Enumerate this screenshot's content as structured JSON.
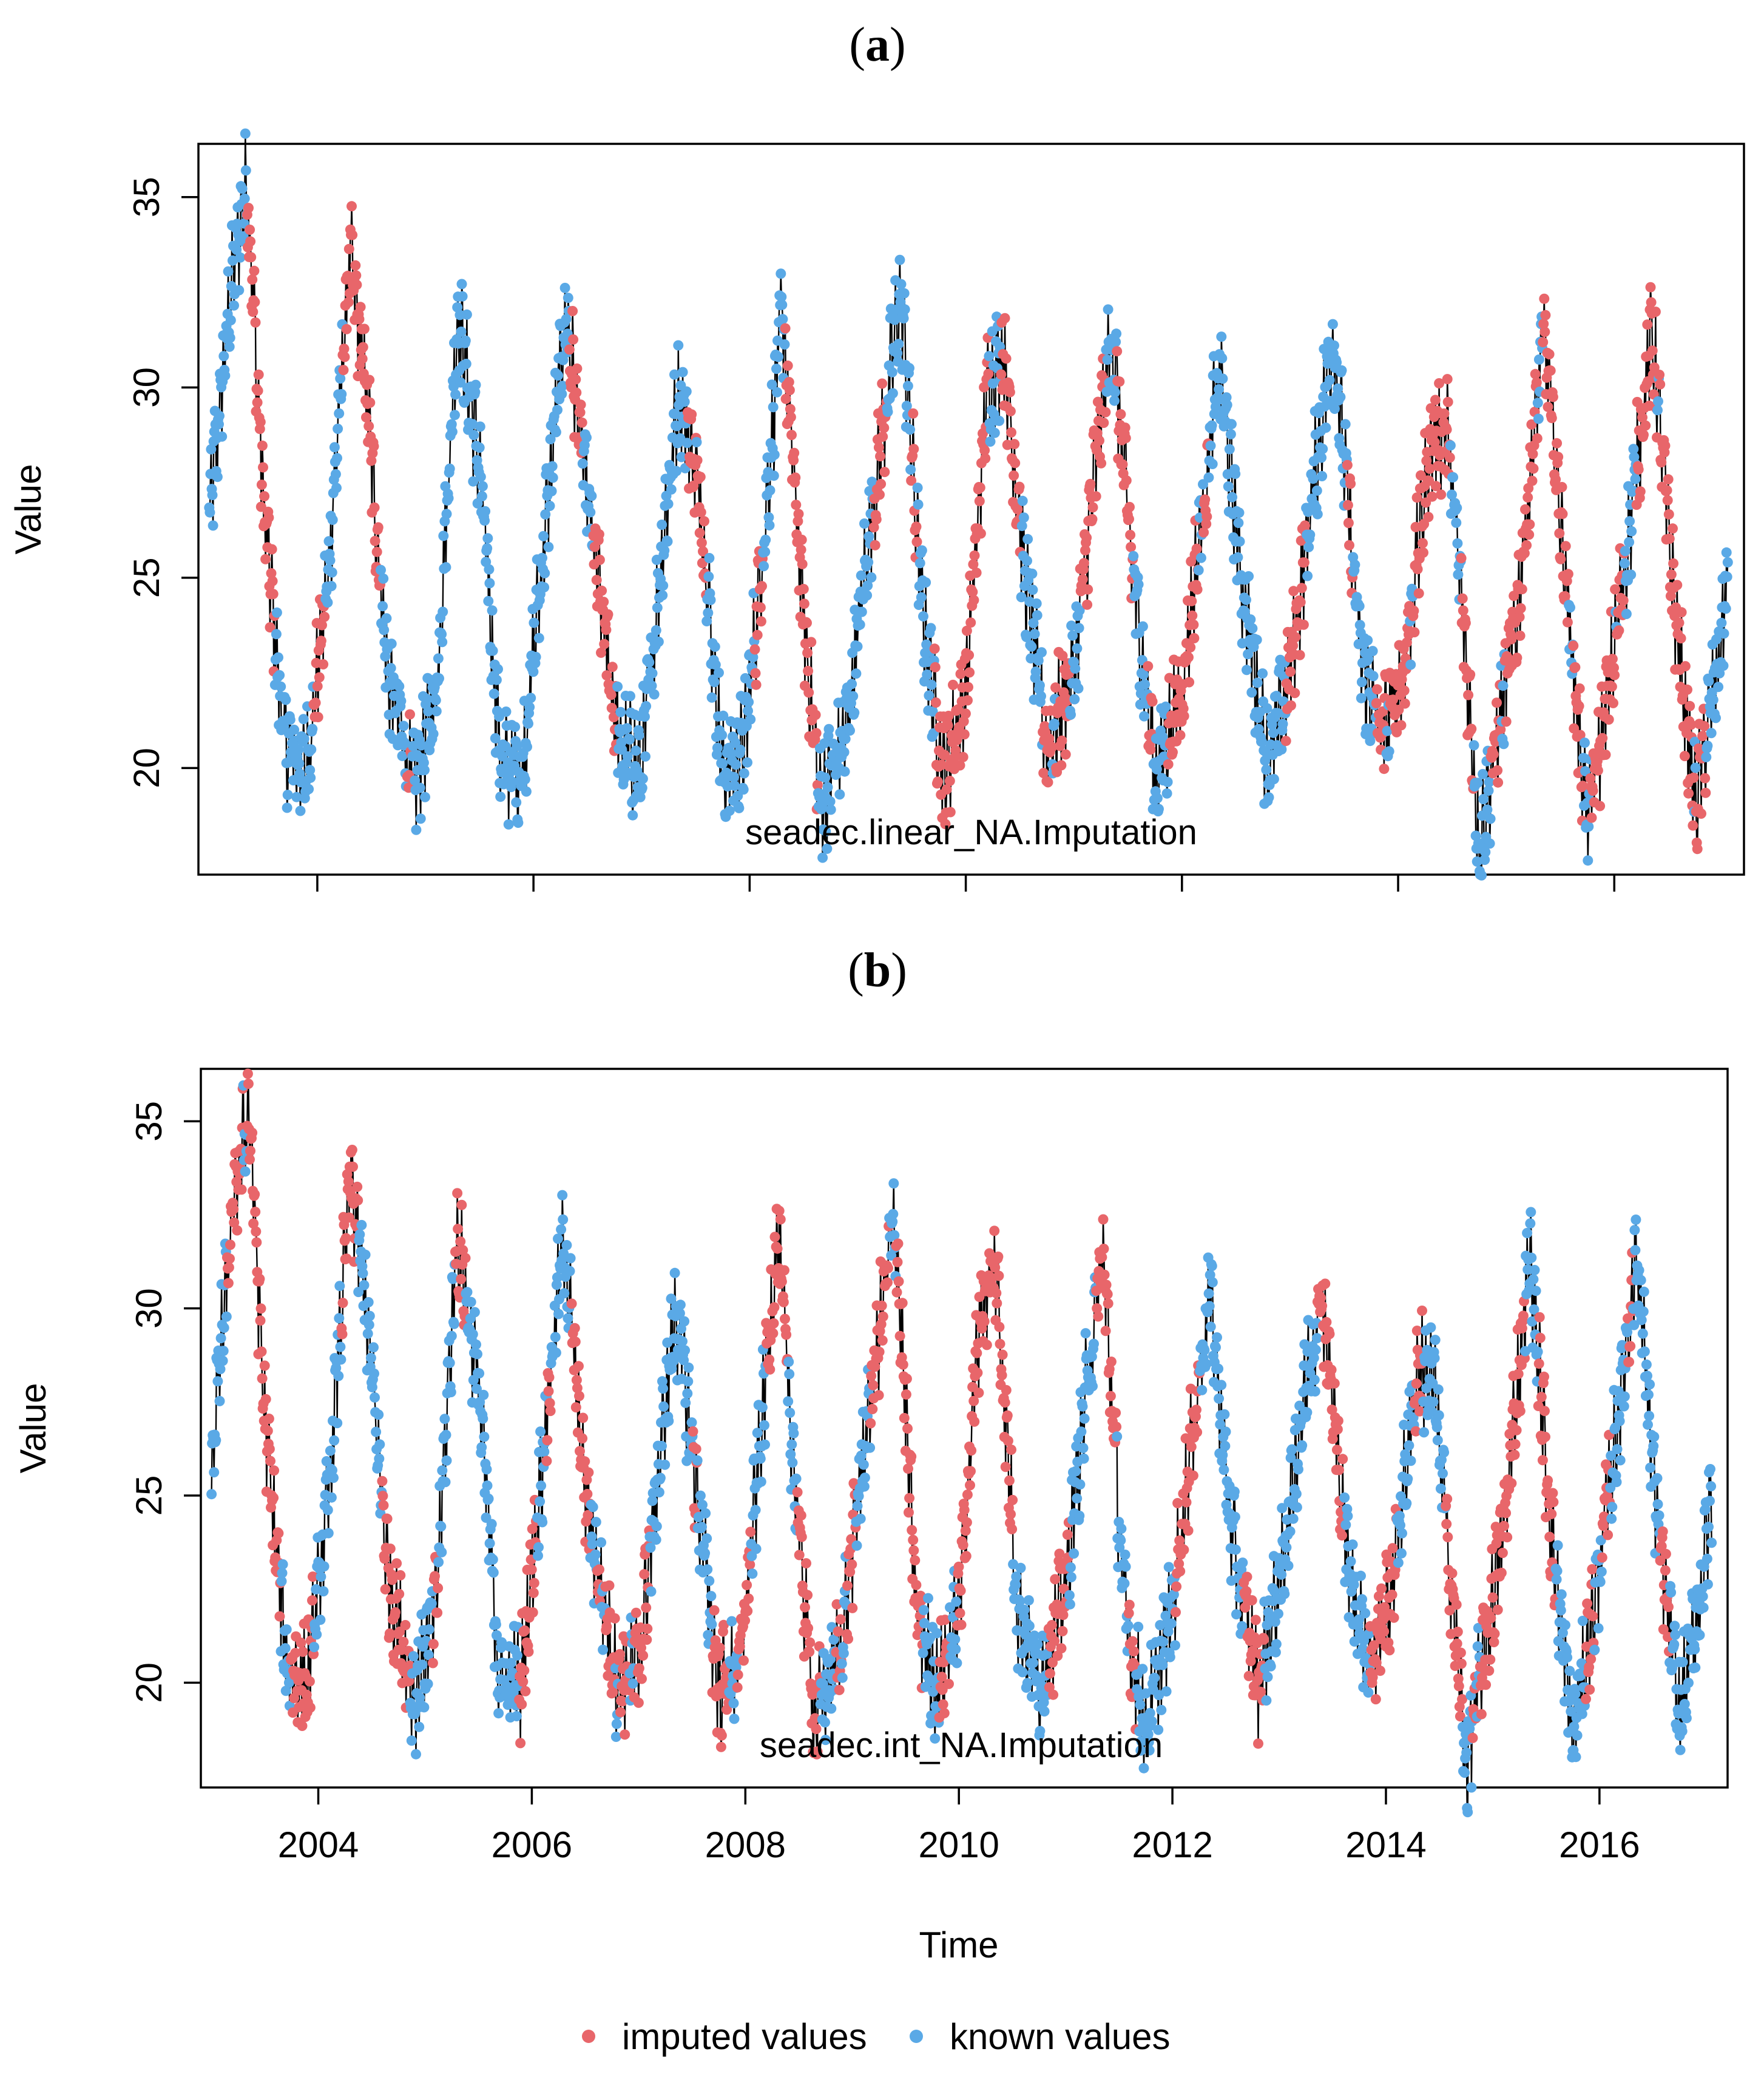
{
  "figure": {
    "legend": [
      {
        "label": "imputed values",
        "color": "#e8666a"
      },
      {
        "label": "known values",
        "color": "#5aa9e6"
      }
    ],
    "line_color": "#000000",
    "x_axis_title": "Time",
    "y_axis_title": "Value"
  },
  "chart_data": [
    {
      "type": "line",
      "panel_label": "a",
      "method_label": "seadec.linear_NA.Imputation",
      "xlabel": "",
      "ylabel": "Value",
      "xlim": [
        2002.9,
        2017.2
      ],
      "ylim": [
        17.2,
        36.4
      ],
      "x_ticks": [
        2004,
        2006,
        2008,
        2010,
        2012,
        2014,
        2016
      ],
      "x_tick_labels": [],
      "y_ticks": [
        20,
        25,
        30,
        35
      ],
      "y_tick_labels": [
        "20",
        "25",
        "30",
        "35"
      ],
      "imputation_style": "linear",
      "anchors": [
        [
          2003.0,
          26.5
        ],
        [
          2003.2,
          32.5
        ],
        [
          2003.35,
          35.5
        ],
        [
          2003.5,
          27.0
        ],
        [
          2003.7,
          20.5
        ],
        [
          2003.9,
          20.0
        ],
        [
          2004.1,
          25.0
        ],
        [
          2004.3,
          33.5
        ],
        [
          2004.45,
          30.0
        ],
        [
          2004.65,
          22.5
        ],
        [
          2004.9,
          19.5
        ],
        [
          2005.1,
          22.0
        ],
        [
          2005.3,
          32.0
        ],
        [
          2005.5,
          28.0
        ],
        [
          2005.7,
          20.0
        ],
        [
          2005.9,
          20.0
        ],
        [
          2006.1,
          26.0
        ],
        [
          2006.3,
          32.0
        ],
        [
          2006.5,
          27.0
        ],
        [
          2006.8,
          20.5
        ],
        [
          2007.0,
          20.0
        ],
        [
          2007.2,
          26.0
        ],
        [
          2007.35,
          30.0
        ],
        [
          2007.55,
          27.0
        ],
        [
          2007.75,
          19.8
        ],
        [
          2007.95,
          20.5
        ],
        [
          2008.1,
          25.0
        ],
        [
          2008.3,
          32.0
        ],
        [
          2008.5,
          24.0
        ],
        [
          2008.65,
          19.0
        ],
        [
          2008.9,
          21.0
        ],
        [
          2009.1,
          26.0
        ],
        [
          2009.4,
          32.5
        ],
        [
          2009.6,
          24.0
        ],
        [
          2009.8,
          19.8
        ],
        [
          2010.0,
          22.0
        ],
        [
          2010.2,
          30.0
        ],
        [
          2010.35,
          31.0
        ],
        [
          2010.55,
          25.0
        ],
        [
          2010.75,
          20.5
        ],
        [
          2011.0,
          22.5
        ],
        [
          2011.2,
          28.0
        ],
        [
          2011.35,
          31.5
        ],
        [
          2011.55,
          25.0
        ],
        [
          2011.75,
          19.8
        ],
        [
          2012.0,
          22.0
        ],
        [
          2012.2,
          27.0
        ],
        [
          2012.35,
          30.5
        ],
        [
          2012.55,
          25.0
        ],
        [
          2012.8,
          20.0
        ],
        [
          2013.0,
          22.5
        ],
        [
          2013.2,
          27.0
        ],
        [
          2013.4,
          31.5
        ],
        [
          2013.65,
          23.0
        ],
        [
          2013.85,
          20.8
        ],
        [
          2014.05,
          22.5
        ],
        [
          2014.3,
          28.5
        ],
        [
          2014.45,
          29.0
        ],
        [
          2014.6,
          24.0
        ],
        [
          2014.75,
          18.0
        ],
        [
          2014.9,
          20.5
        ],
        [
          2015.1,
          24.0
        ],
        [
          2015.35,
          31.5
        ],
        [
          2015.55,
          25.0
        ],
        [
          2015.75,
          18.5
        ],
        [
          2015.95,
          22.0
        ],
        [
          2016.15,
          26.5
        ],
        [
          2016.35,
          31.5
        ],
        [
          2016.55,
          24.5
        ],
        [
          2016.75,
          19.0
        ],
        [
          2016.95,
          22.5
        ],
        [
          2017.05,
          25.0
        ]
      ]
    },
    {
      "type": "line",
      "panel_label": "b",
      "method_label": "seadec.int_NA.Imputation",
      "xlabel": "Time",
      "ylabel": "Value",
      "xlim": [
        2002.9,
        2017.2
      ],
      "ylim": [
        17.2,
        36.4
      ],
      "x_ticks": [
        2004,
        2006,
        2008,
        2010,
        2012,
        2014,
        2016
      ],
      "x_tick_labels": [
        "2004",
        "2006",
        "2008",
        "2010",
        "2012",
        "2014",
        "2016"
      ],
      "y_ticks": [
        20,
        25,
        30,
        35
      ],
      "y_tick_labels": [
        "20",
        "25",
        "30",
        "35"
      ],
      "imputation_style": "spline",
      "anchors": [
        [
          2003.0,
          26.0
        ],
        [
          2003.2,
          32.5
        ],
        [
          2003.35,
          35.5
        ],
        [
          2003.5,
          27.0
        ],
        [
          2003.7,
          20.5
        ],
        [
          2003.9,
          20.0
        ],
        [
          2004.1,
          25.0
        ],
        [
          2004.3,
          33.5
        ],
        [
          2004.45,
          30.0
        ],
        [
          2004.65,
          23.0
        ],
        [
          2004.9,
          19.5
        ],
        [
          2005.1,
          22.0
        ],
        [
          2005.3,
          32.0
        ],
        [
          2005.5,
          28.0
        ],
        [
          2005.7,
          20.0
        ],
        [
          2005.9,
          20.0
        ],
        [
          2006.1,
          26.0
        ],
        [
          2006.3,
          32.0
        ],
        [
          2006.5,
          25.0
        ],
        [
          2006.8,
          20.0
        ],
        [
          2007.0,
          20.5
        ],
        [
          2007.2,
          26.0
        ],
        [
          2007.35,
          30.0
        ],
        [
          2007.55,
          25.0
        ],
        [
          2007.75,
          19.8
        ],
        [
          2007.95,
          20.5
        ],
        [
          2008.1,
          25.0
        ],
        [
          2008.3,
          32.0
        ],
        [
          2008.5,
          24.0
        ],
        [
          2008.65,
          19.0
        ],
        [
          2008.9,
          21.0
        ],
        [
          2009.1,
          26.0
        ],
        [
          2009.4,
          32.5
        ],
        [
          2009.6,
          22.0
        ],
        [
          2009.8,
          19.8
        ],
        [
          2010.0,
          22.0
        ],
        [
          2010.2,
          30.0
        ],
        [
          2010.35,
          31.0
        ],
        [
          2010.55,
          22.0
        ],
        [
          2010.75,
          20.0
        ],
        [
          2011.0,
          22.5
        ],
        [
          2011.2,
          28.0
        ],
        [
          2011.35,
          31.5
        ],
        [
          2011.55,
          22.0
        ],
        [
          2011.75,
          18.7
        ],
        [
          2012.0,
          22.0
        ],
        [
          2012.2,
          27.0
        ],
        [
          2012.35,
          30.5
        ],
        [
          2012.55,
          24.0
        ],
        [
          2012.8,
          20.0
        ],
        [
          2013.0,
          22.5
        ],
        [
          2013.2,
          27.0
        ],
        [
          2013.4,
          30.5
        ],
        [
          2013.65,
          23.0
        ],
        [
          2013.85,
          20.5
        ],
        [
          2014.05,
          22.5
        ],
        [
          2014.3,
          28.5
        ],
        [
          2014.45,
          28.0
        ],
        [
          2014.6,
          23.0
        ],
        [
          2014.75,
          17.8
        ],
        [
          2014.9,
          20.5
        ],
        [
          2015.1,
          24.0
        ],
        [
          2015.35,
          31.5
        ],
        [
          2015.55,
          24.0
        ],
        [
          2015.75,
          18.5
        ],
        [
          2015.95,
          22.0
        ],
        [
          2016.15,
          26.5
        ],
        [
          2016.35,
          31.5
        ],
        [
          2016.55,
          24.0
        ],
        [
          2016.75,
          19.0
        ],
        [
          2016.95,
          22.5
        ],
        [
          2017.05,
          25.0
        ]
      ]
    }
  ]
}
